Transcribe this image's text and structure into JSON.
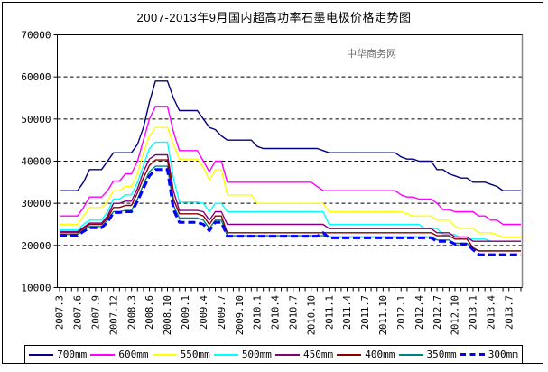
{
  "watermark": "中华商务网",
  "chart_data": {
    "type": "line",
    "title": "2007-2013年9月国内超高功率石墨电极价格走势图",
    "xlabel": "",
    "ylabel": "",
    "ylim": [
      10000,
      70000
    ],
    "y_ticks": [
      70000,
      60000,
      50000,
      40000,
      30000,
      20000,
      10000
    ],
    "grid": "horizontal-dashed",
    "legend_position": "bottom",
    "background": "#FFFFFF",
    "axis_color": "#000000",
    "plot_right_edge_color": "#888888",
    "x_label_every": 3,
    "x_tick_labels": [
      "2007.3",
      "2007.6",
      "2007.9",
      "2007.12",
      "2008.3",
      "2008.6",
      "2008.10",
      "2009.1",
      "2009.4",
      "2009.7",
      "2009.10",
      "2010.1",
      "2010.4",
      "2010.7",
      "2010.10",
      "2011.1",
      "2011.4",
      "2011.7",
      "2011.10",
      "2012.1",
      "2012.4",
      "2012.7",
      "2012.10",
      "2013.1",
      "2013.4",
      "2013.7"
    ],
    "x_months": [
      "2007.3",
      "2007.4",
      "2007.5",
      "2007.6",
      "2007.7",
      "2007.8",
      "2007.9",
      "2007.10",
      "2007.11",
      "2007.12",
      "2008.1",
      "2008.2",
      "2008.3",
      "2008.4",
      "2008.5",
      "2008.6",
      "2008.8",
      "2008.9",
      "2008.10",
      "2008.11",
      "2008.12",
      "2009.1",
      "2009.2",
      "2009.3",
      "2009.4",
      "2009.5",
      "2009.6",
      "2009.7",
      "2009.8",
      "2009.9",
      "2009.10",
      "2009.11",
      "2009.12",
      "2010.1",
      "2010.2",
      "2010.3",
      "2010.4",
      "2010.5",
      "2010.6",
      "2010.7",
      "2010.8",
      "2010.9",
      "2010.10",
      "2010.11",
      "2010.12",
      "2011.1",
      "2011.2",
      "2011.3",
      "2011.4",
      "2011.5",
      "2011.6",
      "2011.7",
      "2011.8",
      "2011.9",
      "2011.10",
      "2011.11",
      "2011.12",
      "2012.1",
      "2012.2",
      "2012.3",
      "2012.4",
      "2012.5",
      "2012.6",
      "2012.7",
      "2012.8",
      "2012.9",
      "2012.10",
      "2012.11",
      "2012.12",
      "2013.1",
      "2013.2",
      "2013.3",
      "2013.4",
      "2013.5",
      "2013.6",
      "2013.7",
      "2013.8",
      "2013.9"
    ],
    "series": [
      {
        "label": "700mm",
        "color": "#000080",
        "stroke_width": 1.4,
        "dash": null,
        "values": [
          33000,
          33000,
          33000,
          33000,
          35000,
          38000,
          38000,
          38000,
          40000,
          42000,
          42000,
          42000,
          42000,
          44000,
          48000,
          54000,
          59000,
          59000,
          59000,
          55000,
          52000,
          52000,
          52000,
          52000,
          50000,
          48000,
          47500,
          46000,
          45000,
          45000,
          45000,
          45000,
          45000,
          43500,
          43000,
          43000,
          43000,
          43000,
          43000,
          43000,
          43000,
          43000,
          43000,
          43000,
          42500,
          42000,
          42000,
          42000,
          42000,
          42000,
          42000,
          42000,
          42000,
          42000,
          42000,
          42000,
          42000,
          41000,
          40500,
          40500,
          40000,
          40000,
          40000,
          38000,
          38000,
          37000,
          36500,
          36000,
          36000,
          35000,
          35000,
          35000,
          34500,
          34000,
          33000,
          33000,
          33000,
          33000
        ]
      },
      {
        "label": "600mm",
        "color": "#FF00FF",
        "stroke_width": 1.4,
        "dash": null,
        "values": [
          27000,
          27000,
          27000,
          27000,
          29000,
          31500,
          31500,
          31500,
          33000,
          35300,
          35300,
          37000,
          37000,
          40000,
          45000,
          50000,
          53000,
          53000,
          53000,
          47000,
          42500,
          42500,
          42500,
          42500,
          40000,
          37500,
          40000,
          40000,
          35000,
          35000,
          35000,
          35000,
          35000,
          35000,
          35000,
          35000,
          35000,
          35000,
          35000,
          35000,
          35000,
          35000,
          35000,
          34000,
          33000,
          33000,
          33000,
          33000,
          33000,
          33000,
          33000,
          33000,
          33000,
          33000,
          33000,
          33000,
          33000,
          32000,
          31500,
          31500,
          31000,
          31000,
          31000,
          30000,
          28500,
          28500,
          28000,
          28000,
          28000,
          28000,
          27000,
          27000,
          26000,
          26000,
          25000,
          25000,
          25000,
          25000
        ]
      },
      {
        "label": "550mm",
        "color": "#FFFF00",
        "stroke_width": 1.4,
        "dash": null,
        "values": [
          25000,
          25000,
          25000,
          25000,
          27000,
          29000,
          29000,
          29000,
          30500,
          33000,
          33000,
          34000,
          34000,
          37000,
          42000,
          46000,
          48000,
          48000,
          48000,
          44000,
          40500,
          40500,
          40500,
          40500,
          38500,
          35500,
          38000,
          38000,
          32000,
          32000,
          32000,
          32000,
          32000,
          30000,
          30000,
          30000,
          30000,
          30000,
          30000,
          30000,
          30000,
          30000,
          30000,
          30000,
          30000,
          28000,
          28000,
          28000,
          28000,
          28000,
          28000,
          28000,
          28000,
          28000,
          28000,
          28000,
          28000,
          28000,
          27500,
          27000,
          27000,
          27000,
          27000,
          26000,
          26000,
          26000,
          24500,
          24000,
          24000,
          24000,
          23000,
          23000,
          23000,
          22500,
          22000,
          22000,
          22000,
          22000
        ]
      },
      {
        "label": "500mm",
        "color": "#00FFFF",
        "stroke_width": 1.4,
        "dash": null,
        "values": [
          23700,
          23700,
          23700,
          23700,
          25000,
          26000,
          26000,
          26000,
          28000,
          31000,
          31000,
          32000,
          32000,
          35000,
          39000,
          43000,
          44500,
          44500,
          44500,
          36000,
          30300,
          30300,
          30300,
          30300,
          30000,
          28000,
          30000,
          30000,
          28000,
          28000,
          28000,
          28000,
          28000,
          28000,
          28000,
          28000,
          28000,
          28000,
          28000,
          28000,
          28000,
          28000,
          28000,
          28000,
          28000,
          25000,
          25000,
          25000,
          25000,
          25000,
          25000,
          25000,
          25000,
          25000,
          25000,
          25000,
          25000,
          25000,
          25000,
          25000,
          25000,
          24000,
          24000,
          24000,
          22600,
          22600,
          22600,
          21500,
          21500,
          21500,
          21500,
          21500,
          21000,
          21000,
          21000,
          21000,
          21000,
          21000
        ]
      },
      {
        "label": "450mm",
        "color": "#800080",
        "stroke_width": 1.4,
        "dash": null,
        "values": [
          23300,
          23300,
          23300,
          23300,
          24300,
          25300,
          25300,
          25300,
          27000,
          30000,
          30000,
          30500,
          30500,
          33500,
          37500,
          40500,
          41500,
          41500,
          41500,
          33000,
          28300,
          28300,
          28300,
          28300,
          28000,
          26000,
          28000,
          28000,
          25000,
          25000,
          25000,
          25000,
          25000,
          25000,
          25000,
          25000,
          25000,
          25000,
          25000,
          25000,
          25000,
          25000,
          25000,
          25000,
          25000,
          24000,
          24000,
          24000,
          24000,
          24000,
          24000,
          24000,
          24000,
          24000,
          24000,
          24000,
          24000,
          24000,
          24000,
          24000,
          24000,
          24000,
          24000,
          23000,
          23000,
          23000,
          22000,
          22000,
          22000,
          21000,
          21000,
          21000,
          21000,
          21000,
          21000,
          21000,
          21000,
          21000
        ]
      },
      {
        "label": "400mm",
        "color": "#8B0000",
        "stroke_width": 1.4,
        "dash": null,
        "values": [
          23000,
          23000,
          23000,
          23000,
          24000,
          25000,
          25000,
          25000,
          26500,
          29000,
          29000,
          29500,
          29500,
          32500,
          36000,
          39000,
          40300,
          40300,
          40300,
          31000,
          27500,
          27500,
          27500,
          27500,
          27000,
          25000,
          27000,
          27000,
          23000,
          23000,
          23000,
          23000,
          23000,
          23000,
          23000,
          23000,
          23000,
          23000,
          23000,
          23000,
          23000,
          23000,
          23000,
          23000,
          23000,
          23000,
          23000,
          23000,
          23000,
          23000,
          23000,
          23000,
          23000,
          23000,
          23000,
          23000,
          23000,
          23000,
          23000,
          23000,
          23000,
          23000,
          23000,
          22300,
          22300,
          22300,
          21500,
          21500,
          21500,
          19500,
          18700,
          18700,
          18700,
          18700,
          18700,
          18700,
          18700,
          18700
        ]
      },
      {
        "label": "350mm",
        "color": "#008080",
        "stroke_width": 1.4,
        "dash": null,
        "values": [
          22600,
          22600,
          22600,
          22600,
          23600,
          24500,
          24500,
          24500,
          26000,
          28000,
          28000,
          28300,
          28300,
          31000,
          34500,
          37500,
          38800,
          38800,
          38800,
          29500,
          26500,
          26500,
          26500,
          26500,
          26000,
          24000,
          26000,
          26000,
          22300,
          22300,
          22300,
          22300,
          22300,
          22300,
          22300,
          22300,
          22300,
          22300,
          22300,
          22300,
          22300,
          22300,
          22300,
          22300,
          22300,
          22000,
          22000,
          22000,
          22000,
          22000,
          22000,
          22000,
          22000,
          22000,
          22000,
          22000,
          22000,
          22000,
          22000,
          22000,
          22000,
          22000,
          22000,
          21300,
          21300,
          21300,
          20500,
          20500,
          20500,
          19200,
          18700,
          18700,
          18700,
          18700,
          18700,
          18700,
          18700,
          18700
        ]
      },
      {
        "label": "300mm",
        "color": "#0000FF",
        "stroke_width": 3,
        "dash": "8 4",
        "values": [
          22400,
          22400,
          22400,
          22400,
          23300,
          24200,
          24200,
          24200,
          25500,
          27800,
          27800,
          28000,
          28000,
          30500,
          33500,
          36500,
          38000,
          38000,
          38000,
          28500,
          25500,
          25500,
          25500,
          25500,
          25000,
          23500,
          25500,
          25500,
          22200,
          22200,
          22200,
          22200,
          22200,
          22200,
          22200,
          22200,
          22200,
          22200,
          22200,
          22200,
          22200,
          22200,
          22200,
          22200,
          23000,
          21800,
          21800,
          21800,
          21800,
          21800,
          21800,
          21800,
          21800,
          21800,
          21800,
          21800,
          21800,
          21800,
          21800,
          21800,
          21800,
          21800,
          21800,
          21000,
          21000,
          21000,
          20300,
          20300,
          20300,
          19000,
          17800,
          17800,
          17800,
          17800,
          17800,
          17800,
          17800,
          17800
        ]
      }
    ]
  }
}
